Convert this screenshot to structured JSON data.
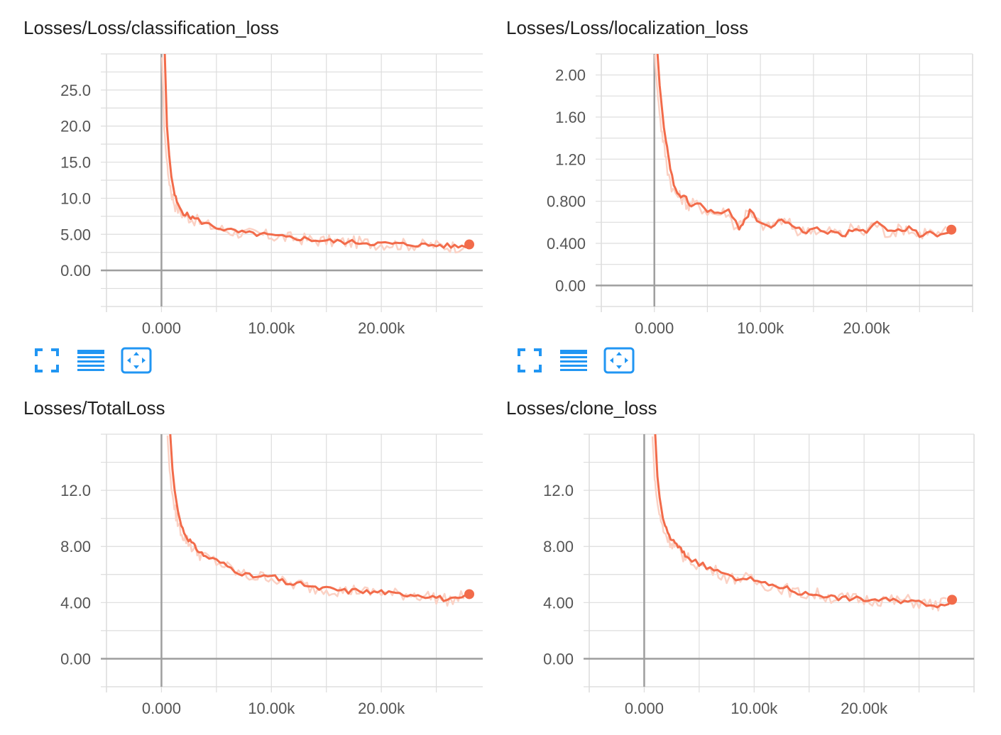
{
  "colors": {
    "line": "#f26b4a",
    "raw": "#fbd1c4",
    "grid": "#dddddd",
    "axis": "#9e9e9e",
    "icon": "#2196f3",
    "text": "#212121",
    "tick": "#555555"
  },
  "toolbar": {
    "icons": [
      "fullscreen-icon",
      "data-table-icon",
      "fit-domain-icon"
    ]
  },
  "chart_data": [
    {
      "type": "line",
      "title": "Losses/Loss/classification_loss",
      "xlabel": "",
      "ylabel": "",
      "xlim": [
        -5000,
        30000
      ],
      "ylim": [
        -5,
        30
      ],
      "x_ticks": [
        0,
        10000,
        20000
      ],
      "x_tick_labels": [
        "0.000",
        "10.00k",
        "20.00k"
      ],
      "y_ticks": [
        0,
        5,
        10,
        15,
        20,
        25
      ],
      "y_tick_labels": [
        "0.00",
        "5.00",
        "10.0",
        "15.0",
        "20.0",
        "25.0"
      ],
      "grid": true,
      "series": [
        {
          "x": [
            300,
            500,
            700,
            900,
            1200,
            1500,
            2000,
            2500,
            3000,
            4000,
            5000,
            6000,
            7000,
            8000,
            9000,
            10000,
            11000,
            12000,
            13000,
            14000,
            15000,
            16000,
            17000,
            18000,
            19000,
            20000,
            21000,
            22000,
            23000,
            24000,
            25000,
            26000,
            27000,
            28000
          ],
          "y": [
            30,
            20,
            16,
            13,
            10.5,
            9,
            8,
            7.5,
            7.2,
            6.5,
            6,
            5.6,
            5.3,
            5.1,
            5.0,
            4.8,
            4.6,
            4.5,
            4.4,
            4.2,
            4.1,
            4.0,
            3.9,
            3.9,
            3.8,
            3.7,
            3.7,
            3.6,
            3.6,
            3.5,
            3.5,
            3.4,
            3.3,
            3.6
          ]
        }
      ]
    },
    {
      "type": "line",
      "title": "Losses/Loss/localization_loss",
      "xlabel": "",
      "ylabel": "",
      "xlim": [
        -5000,
        30000
      ],
      "ylim": [
        -0.2,
        2.2
      ],
      "x_ticks": [
        0,
        10000,
        20000
      ],
      "x_tick_labels": [
        "0.000",
        "10.00k",
        "20.00k"
      ],
      "y_ticks": [
        0,
        0.4,
        0.8,
        1.2,
        1.6,
        2.0
      ],
      "y_tick_labels": [
        "0.00",
        "0.400",
        "0.800",
        "1.20",
        "1.60",
        "2.00"
      ],
      "grid": true,
      "series": [
        {
          "x": [
            300,
            500,
            700,
            900,
            1200,
            1500,
            2000,
            2500,
            3000,
            3500,
            4000,
            5000,
            6000,
            7000,
            8000,
            8500,
            9000,
            10000,
            11000,
            12000,
            13000,
            14000,
            15000,
            16000,
            17000,
            18000,
            19000,
            20000,
            21000,
            22000,
            23000,
            24000,
            25000,
            26000,
            27000,
            28000
          ],
          "y": [
            2.2,
            1.9,
            1.7,
            1.5,
            1.3,
            1.1,
            0.9,
            0.85,
            0.82,
            0.75,
            0.78,
            0.72,
            0.68,
            0.7,
            0.55,
            0.62,
            0.7,
            0.6,
            0.55,
            0.62,
            0.58,
            0.5,
            0.55,
            0.5,
            0.52,
            0.48,
            0.55,
            0.5,
            0.6,
            0.5,
            0.52,
            0.55,
            0.48,
            0.52,
            0.47,
            0.53
          ]
        }
      ]
    },
    {
      "type": "line",
      "title": "Losses/TotalLoss",
      "xlabel": "",
      "ylabel": "",
      "xlim": [
        -5000,
        30000
      ],
      "ylim": [
        -2,
        16
      ],
      "x_ticks": [
        0,
        10000,
        20000
      ],
      "x_tick_labels": [
        "0.000",
        "10.00k",
        "20.00k"
      ],
      "y_ticks": [
        0,
        4,
        8,
        12
      ],
      "y_tick_labels": [
        "0.00",
        "4.00",
        "8.00",
        "12.0"
      ],
      "grid": true,
      "series": [
        {
          "x": [
            800,
            1000,
            1200,
            1500,
            1800,
            2200,
            2600,
            3000,
            3500,
            4000,
            5000,
            6000,
            7000,
            8000,
            9000,
            10000,
            11000,
            12000,
            13000,
            14000,
            15000,
            16000,
            17000,
            18000,
            19000,
            20000,
            21000,
            22000,
            23000,
            24000,
            25000,
            26000,
            27000,
            28000
          ],
          "y": [
            16,
            13.5,
            12,
            10.5,
            9.5,
            8.8,
            8.4,
            8.0,
            7.6,
            7.3,
            7.0,
            6.6,
            6.2,
            5.9,
            5.8,
            5.9,
            5.5,
            5.3,
            5.3,
            5.0,
            5.0,
            4.9,
            4.8,
            4.9,
            4.7,
            4.8,
            4.6,
            4.6,
            4.6,
            4.5,
            4.4,
            4.2,
            4.2,
            4.6
          ]
        }
      ]
    },
    {
      "type": "line",
      "title": "Losses/clone_loss",
      "xlabel": "",
      "ylabel": "",
      "xlim": [
        -5000,
        30000
      ],
      "ylim": [
        -2,
        16
      ],
      "x_ticks": [
        0,
        10000,
        20000
      ],
      "x_tick_labels": [
        "0.000",
        "10.00k",
        "20.00k"
      ],
      "y_ticks": [
        0,
        4,
        8,
        12
      ],
      "y_tick_labels": [
        "0.00",
        "4.00",
        "8.00",
        "12.0"
      ],
      "grid": true,
      "series": [
        {
          "x": [
            1000,
            1200,
            1400,
            1700,
            2000,
            2400,
            2800,
            3200,
            3600,
            4000,
            5000,
            6000,
            7000,
            8000,
            9000,
            10000,
            11000,
            12000,
            13000,
            14000,
            15000,
            16000,
            17000,
            18000,
            19000,
            20000,
            21000,
            22000,
            23000,
            24000,
            25000,
            26000,
            27000,
            28000
          ],
          "y": [
            16,
            13,
            11.5,
            10,
            9.2,
            8.6,
            8.2,
            7.9,
            7.5,
            7.2,
            6.8,
            6.4,
            6.2,
            5.7,
            5.8,
            5.6,
            5.3,
            5.2,
            5.0,
            4.7,
            4.6,
            4.6,
            4.4,
            4.3,
            4.3,
            4.2,
            4.2,
            4.2,
            4.1,
            4.2,
            4.0,
            3.9,
            3.8,
            4.2
          ]
        }
      ]
    }
  ]
}
